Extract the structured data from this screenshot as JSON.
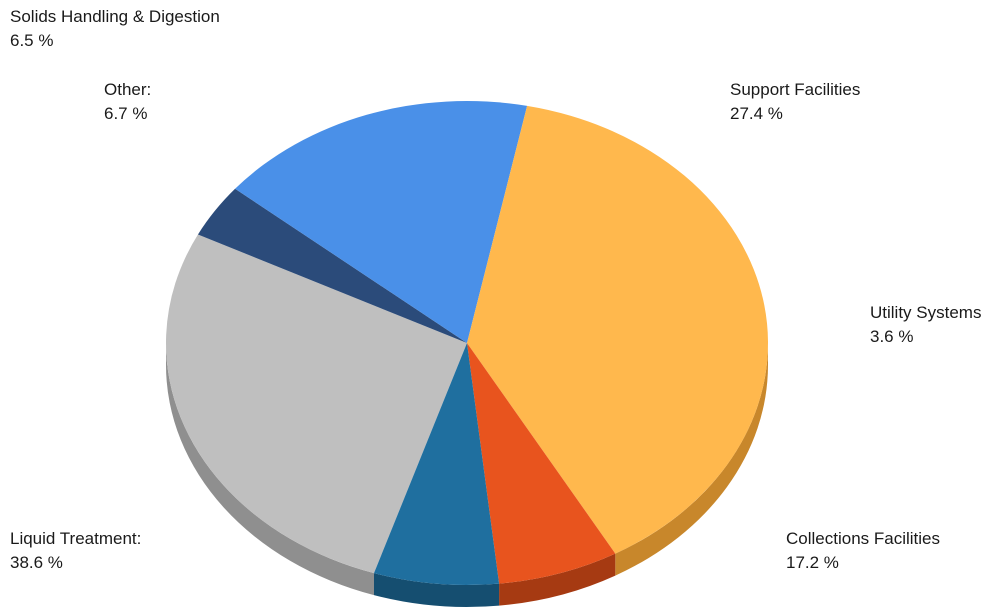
{
  "chart_data": {
    "type": "pie",
    "title": "",
    "slices": [
      {
        "label": "Support Facilities",
        "value": 27.4,
        "display": "27.4 %",
        "color": "#bfbfbf",
        "side": "#8f8f8f"
      },
      {
        "label": "Utility Systems",
        "value": 3.6,
        "display": "3.6 %",
        "color": "#2b4b7a",
        "side": "#1d3458"
      },
      {
        "label": "Collections Facilities",
        "value": 17.2,
        "display": "17.2 %",
        "color": "#4a90e8",
        "side": "#2c5fa8"
      },
      {
        "label": "Liquid Treatment:",
        "value": 38.6,
        "display": "38.6 %",
        "color": "#ffb84d",
        "side": "#c8872b"
      },
      {
        "label": "Solids Handling & Digestion",
        "value": 6.5,
        "display": "6.5 %",
        "color": "#e8541e",
        "side": "#a63a12"
      },
      {
        "label": "Other:",
        "value": 6.7,
        "display": "6.7 %",
        "color": "#1f6f9f",
        "side": "#154e70"
      }
    ]
  }
}
